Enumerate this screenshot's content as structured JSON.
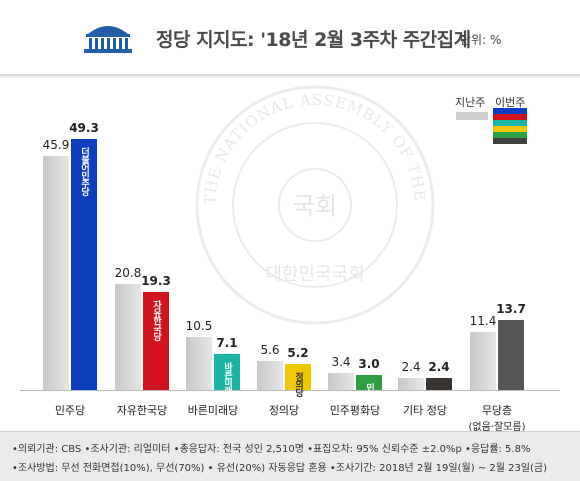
{
  "header": {
    "title": "정당 지지도: '18년 2월 3주차 주간집계",
    "unit": "단위: %"
  },
  "legend": {
    "last_week": "지난주",
    "this_week": "이번주",
    "this_week_colors": [
      "#0b3fbf",
      "#d1141b",
      "#1ab3a6",
      "#f0c800",
      "#2da142",
      "#404040"
    ]
  },
  "seal": {
    "ring_text": "THE NATIONAL ASSEMBLY OF THE REPUBLIC OF KOREA",
    "center_text": "국회",
    "bottom_text": "대한민국국회"
  },
  "chart_data": {
    "type": "bar",
    "categories": [
      "민주당",
      "자유한국당",
      "바른미래당",
      "정의당",
      "민주평화당",
      "기타 정당",
      "무당층"
    ],
    "category_notes": [
      "",
      "",
      "",
      "",
      "",
      "",
      "(없음·잘모름)"
    ],
    "series": [
      {
        "name": "지난주",
        "values": [
          45.9,
          20.8,
          10.5,
          5.6,
          3.4,
          2.4,
          11.4
        ]
      },
      {
        "name": "이번주",
        "values": [
          49.3,
          19.3,
          7.1,
          5.2,
          3.0,
          2.4,
          13.7
        ]
      }
    ],
    "value_labels_last": [
      "45.9",
      "20.8",
      "10.5",
      "5.6",
      "3.4",
      "2.4",
      "11.4"
    ],
    "value_labels_this": [
      "49.3",
      "19.3",
      "7.1",
      "5.2",
      "3.0",
      "2.4",
      "13.7"
    ],
    "this_week_colors": [
      "#0b3fbf",
      "#d1141b",
      "#1ab3a6",
      "#f0c800",
      "#2da142",
      "#3a3530",
      "#555555"
    ],
    "party_tags": [
      "더불어민주당",
      "자유한국당",
      "바른미래당",
      "정의당",
      "민주평화당",
      "",
      ""
    ],
    "ylim": [
      0,
      55
    ],
    "grid": false,
    "legend_position": "top-right"
  },
  "footer": {
    "line1": "•의뢰기관: CBS  •조사기관: 리얼미터  •총응답자: 전국 성인 2,510명  •표집오차: 95% 신뢰수준 ±2.0%p  •응답률: 5.8%",
    "line2": "•조사방법: 무선 전화면접(10%), 무선(70%) • 유선(20%) 자동응답 혼용  •조사기간: 2018년 2월 19일(월) ~ 2월 23일(금)"
  }
}
